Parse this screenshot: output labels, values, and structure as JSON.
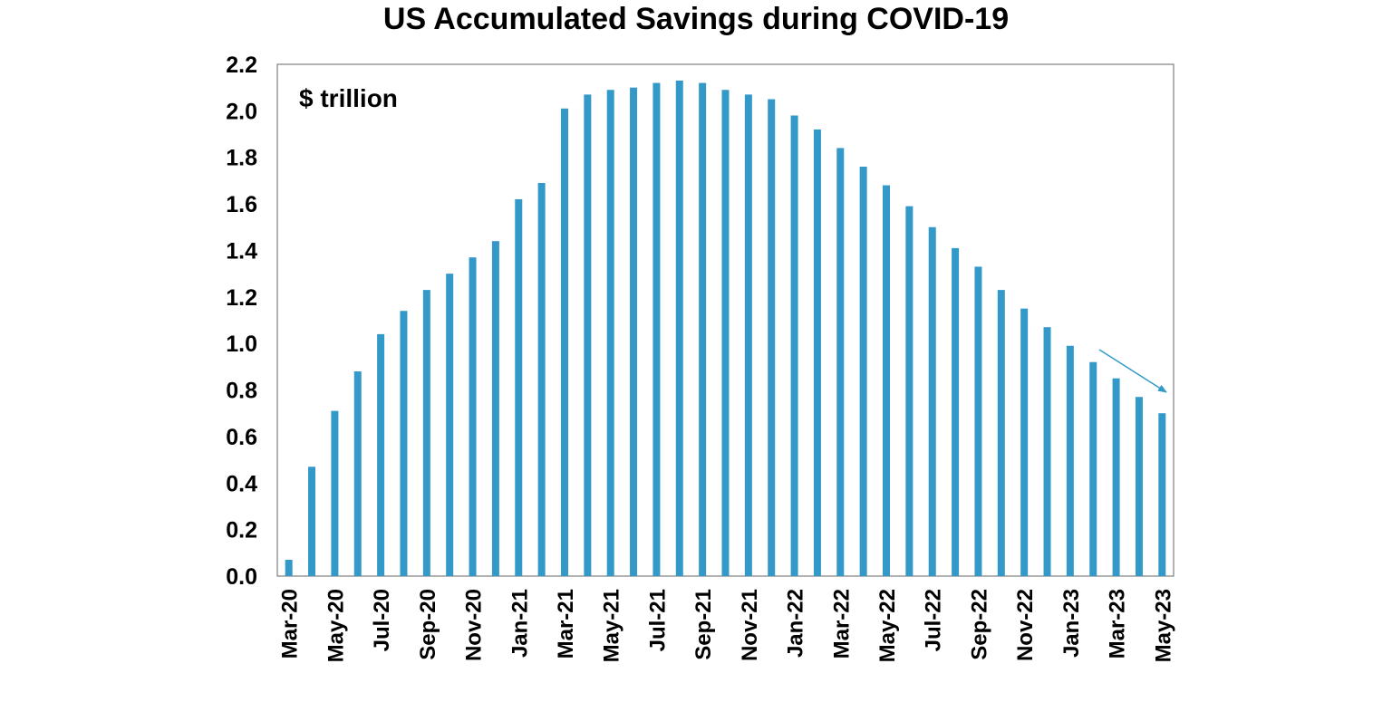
{
  "chart_data": {
    "type": "bar",
    "title": "US Accumulated Savings during COVID-19",
    "unit_label": "$ trillion",
    "xlabel": "",
    "ylabel": "",
    "ylim": [
      0,
      2.2
    ],
    "y_ticks": [
      "0.0",
      "0.2",
      "0.4",
      "0.6",
      "0.8",
      "1.0",
      "1.2",
      "1.4",
      "1.6",
      "1.8",
      "2.0",
      "2.2"
    ],
    "categories": [
      "Mar-20",
      "Apr-20",
      "May-20",
      "Jun-20",
      "Jul-20",
      "Aug-20",
      "Sep-20",
      "Oct-20",
      "Nov-20",
      "Dec-20",
      "Jan-21",
      "Feb-21",
      "Mar-21",
      "Apr-21",
      "May-21",
      "Jun-21",
      "Jul-21",
      "Aug-21",
      "Sep-21",
      "Oct-21",
      "Nov-21",
      "Dec-21",
      "Jan-22",
      "Feb-22",
      "Mar-22",
      "Apr-22",
      "May-22",
      "Jun-22",
      "Jul-22",
      "Aug-22",
      "Sep-22",
      "Oct-22",
      "Nov-22",
      "Dec-22",
      "Jan-23",
      "Feb-23",
      "Mar-23",
      "Apr-23",
      "May-23"
    ],
    "x_tick_labels": [
      "Mar-20",
      "May-20",
      "Jul-20",
      "Sep-20",
      "Nov-20",
      "Jan-21",
      "Mar-21",
      "May-21",
      "Jul-21",
      "Sep-21",
      "Nov-21",
      "Jan-22",
      "Mar-22",
      "May-22",
      "Jul-22",
      "Sep-22",
      "Nov-22",
      "Jan-23",
      "Mar-23",
      "May-23"
    ],
    "values": [
      0.07,
      0.47,
      0.71,
      0.88,
      1.04,
      1.14,
      1.23,
      1.3,
      1.37,
      1.44,
      1.62,
      1.69,
      2.01,
      2.07,
      2.09,
      2.1,
      2.12,
      2.13,
      2.12,
      2.09,
      2.07,
      2.05,
      1.98,
      1.92,
      1.84,
      1.76,
      1.68,
      1.59,
      1.5,
      1.41,
      1.33,
      1.23,
      1.15,
      1.07,
      0.99,
      0.92,
      0.85,
      0.77,
      0.7
    ],
    "bar_color": "#3399c8",
    "grid": false,
    "legend": "none",
    "annotation": "trend arrow pointing down to latest bar"
  }
}
